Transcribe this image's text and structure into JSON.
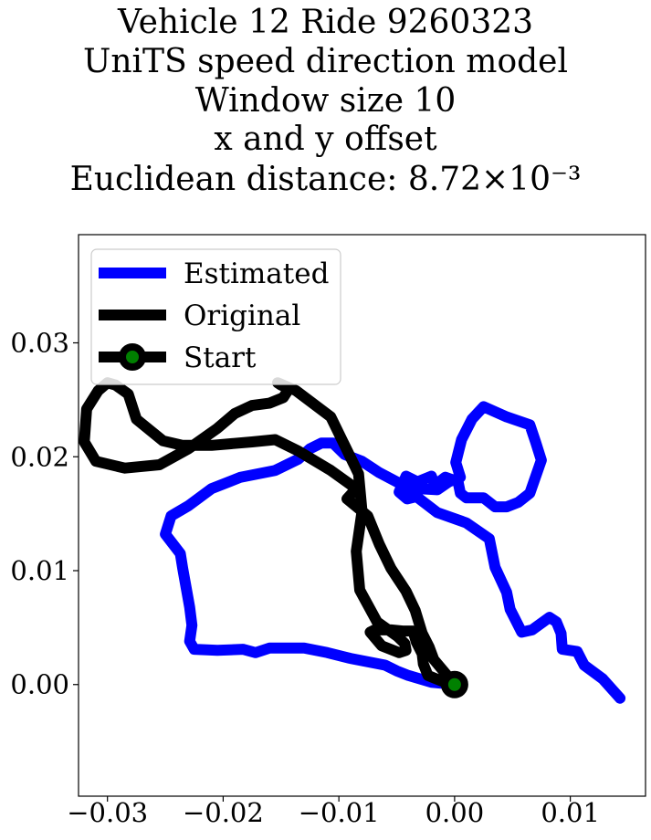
{
  "chart_data": {
    "type": "line",
    "title_lines": [
      "Vehicle 12 Ride 9260323",
      "UniTS speed direction model",
      "Window size 10",
      "x and y offset",
      "Euclidean distance: 8.72×10⁻³"
    ],
    "xlabel": "",
    "ylabel": "",
    "xlim": [
      -0.0325,
      0.0165
    ],
    "ylim": [
      -0.0098,
      0.0395
    ],
    "xticks": [
      -0.03,
      -0.02,
      -0.01,
      0.0,
      0.01
    ],
    "xtick_labels": [
      "−0.03",
      "−0.02",
      "−0.01",
      "0.00",
      "0.01"
    ],
    "yticks": [
      0.0,
      0.01,
      0.02,
      0.03
    ],
    "ytick_labels": [
      "0.00",
      "0.01",
      "0.02",
      "0.03"
    ],
    "grid": false,
    "legend_position": "top-left",
    "series": [
      {
        "name": "Estimated",
        "color": "#0000ff",
        "x": [
          0.0,
          -0.002,
          -0.004,
          -0.005,
          -0.006,
          -0.009,
          -0.011,
          -0.013,
          -0.016,
          -0.0172,
          -0.0183,
          -0.0205,
          -0.0225,
          -0.0229,
          -0.0227,
          -0.0229,
          -0.0232,
          -0.0235,
          -0.0237,
          -0.025,
          -0.0245,
          -0.023,
          -0.021,
          -0.0185,
          -0.0155,
          -0.0135,
          -0.0125,
          -0.0115,
          -0.0105,
          -0.0095,
          -0.008,
          -0.0065,
          -0.005,
          -0.004,
          -0.003,
          -0.0015,
          -0.0005,
          0.0005,
          0.0001,
          0.0006,
          0.0015,
          0.0025,
          0.0045,
          0.0065,
          0.007,
          0.0075,
          0.0065,
          0.0055,
          0.0045,
          0.0035,
          0.0025,
          0.001,
          0.0005,
          0.0003,
          -0.0008,
          -0.0017,
          -0.002,
          -0.0032,
          -0.0042,
          -0.0048,
          -0.0041,
          -0.0033,
          -0.0015,
          0.001,
          0.003,
          0.0035,
          0.0045,
          0.0048,
          0.0052,
          0.0058,
          0.0067,
          0.0082,
          0.0088,
          0.0092,
          0.0093,
          0.0106,
          0.0112,
          0.0128,
          0.0143
        ],
        "y": [
          0.0,
          0.0002,
          0.0008,
          0.0012,
          0.0017,
          0.0023,
          0.0028,
          0.0032,
          0.0032,
          0.0028,
          0.0031,
          0.003,
          0.0031,
          0.0038,
          0.0052,
          0.0068,
          0.0085,
          0.0102,
          0.0115,
          0.0132,
          0.0148,
          0.0157,
          0.0172,
          0.0182,
          0.0188,
          0.0198,
          0.0207,
          0.0212,
          0.0212,
          0.0202,
          0.0196,
          0.0186,
          0.0178,
          0.0173,
          0.0172,
          0.0171,
          0.0178,
          0.0182,
          0.0195,
          0.0215,
          0.0233,
          0.0244,
          0.0235,
          0.0228,
          0.0213,
          0.0197,
          0.0168,
          0.016,
          0.0156,
          0.0156,
          0.0164,
          0.0164,
          0.0168,
          0.0178,
          0.0182,
          0.0175,
          0.0183,
          0.0178,
          0.0183,
          0.0169,
          0.0163,
          0.0165,
          0.0151,
          0.0142,
          0.0128,
          0.0103,
          0.0081,
          0.0066,
          0.0058,
          0.0046,
          0.0048,
          0.0059,
          0.0055,
          0.0045,
          0.0031,
          0.0029,
          0.0017,
          0.0005,
          -0.0012
        ]
      },
      {
        "name": "Original",
        "color": "#000000",
        "x": [
          0.0,
          -0.0008,
          -0.0018,
          -0.0022,
          -0.0028,
          -0.0034,
          -0.0042,
          -0.0055,
          -0.0065,
          -0.0075,
          -0.0087,
          -0.0093,
          -0.0085,
          -0.0107,
          -0.0135,
          -0.0155,
          -0.0175,
          -0.021,
          -0.0235,
          -0.0252,
          -0.0275,
          -0.0282,
          -0.0293,
          -0.03,
          -0.0308,
          -0.0318,
          -0.032,
          -0.031,
          -0.0285,
          -0.0255,
          -0.023,
          -0.0205,
          -0.019,
          -0.0175,
          -0.016,
          -0.0148,
          -0.0143,
          -0.015,
          -0.0153,
          -0.0137,
          -0.0107,
          -0.0095,
          -0.0083,
          -0.008,
          -0.0085,
          -0.0082,
          -0.0067,
          -0.0049,
          -0.0043,
          -0.0042,
          -0.0048,
          -0.0063,
          -0.0073,
          -0.0069,
          -0.0055,
          -0.0045,
          -0.0036,
          -0.0033,
          -0.0028,
          -0.0027,
          -0.0023,
          -0.0011,
          0.0
        ],
        "y": [
          0.0,
          0.001,
          0.0022,
          0.0033,
          0.0045,
          0.0065,
          0.0082,
          0.0102,
          0.0123,
          0.0148,
          0.0158,
          0.0163,
          0.0172,
          0.0188,
          0.0205,
          0.0215,
          0.0213,
          0.021,
          0.021,
          0.0214,
          0.0233,
          0.0255,
          0.0263,
          0.0265,
          0.0258,
          0.0242,
          0.0213,
          0.0196,
          0.019,
          0.0193,
          0.0207,
          0.0225,
          0.0238,
          0.0245,
          0.0247,
          0.0252,
          0.026,
          0.0263,
          0.0265,
          0.0258,
          0.0235,
          0.021,
          0.0185,
          0.0152,
          0.0117,
          0.0083,
          0.0055,
          0.0042,
          0.0036,
          0.003,
          0.0028,
          0.0034,
          0.0046,
          0.0048,
          0.0048,
          0.0047,
          0.0047,
          0.0037,
          0.0027,
          0.0018,
          0.0008,
          0.0003,
          0.0
        ]
      }
    ],
    "start_point": {
      "name": "Start",
      "x": 0.0,
      "y": 0.0,
      "marker_color": "#008000",
      "edge_color": "#000000"
    }
  }
}
